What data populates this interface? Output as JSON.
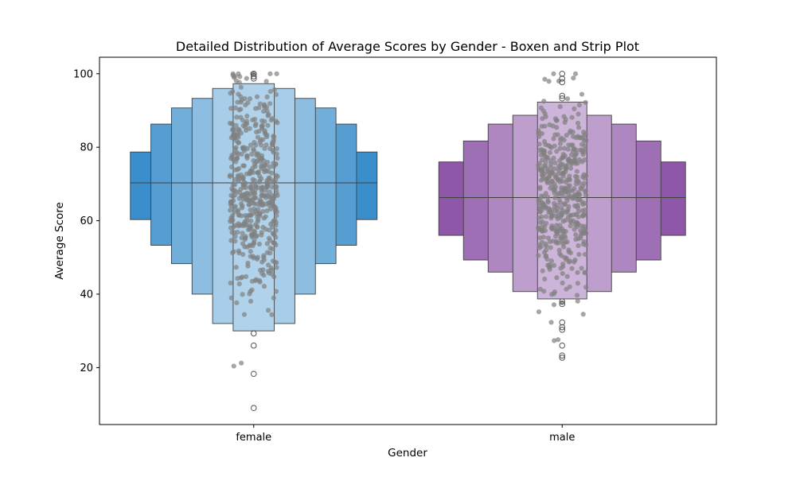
{
  "chart_data": {
    "type": "boxen",
    "title": "Detailed Distribution of Average Scores by Gender - Boxen and Strip Plot",
    "xlabel": "Gender",
    "ylabel": "Average Score",
    "categories": [
      "female",
      "male"
    ],
    "ylim": [
      4.5,
      104.5
    ],
    "yticks": [
      20,
      40,
      60,
      80,
      100
    ],
    "grid": false,
    "colors": {
      "female": "#3a8ecb",
      "male": "#8e57a8",
      "points": "#808080",
      "edge": "#404040"
    },
    "series": [
      {
        "category": "female",
        "median": 70.3,
        "boxes": [
          {
            "low": 60.3,
            "high": 78.7
          },
          {
            "low": 53.3,
            "high": 86.3
          },
          {
            "low": 48.3,
            "high": 90.7
          },
          {
            "low": 40.0,
            "high": 93.3
          },
          {
            "low": 32.0,
            "high": 96.0
          },
          {
            "low": 30.0,
            "high": 97.3
          }
        ],
        "outliers": [
          29.3,
          26.0,
          18.3,
          9.0,
          98.7,
          99.3,
          100.0
        ]
      },
      {
        "category": "male",
        "median": 66.3,
        "boxes": [
          {
            "low": 56.0,
            "high": 76.0
          },
          {
            "low": 49.3,
            "high": 81.7
          },
          {
            "low": 46.0,
            "high": 86.3
          },
          {
            "low": 40.7,
            "high": 88.7
          },
          {
            "low": 38.7,
            "high": 92.3
          }
        ],
        "outliers": [
          38.0,
          37.3,
          32.3,
          31.0,
          30.3,
          26.0,
          23.3,
          22.7,
          93.3,
          94.0,
          97.7,
          98.7,
          100.0
        ]
      }
    ],
    "strip_points": {
      "female": {
        "count": 518,
        "min": 9.0,
        "max": 100.0,
        "mean": 69.6,
        "sd": 14.5
      },
      "male": {
        "count": 482,
        "min": 22.7,
        "max": 100.0,
        "mean": 65.8,
        "sd": 13.5
      }
    }
  }
}
